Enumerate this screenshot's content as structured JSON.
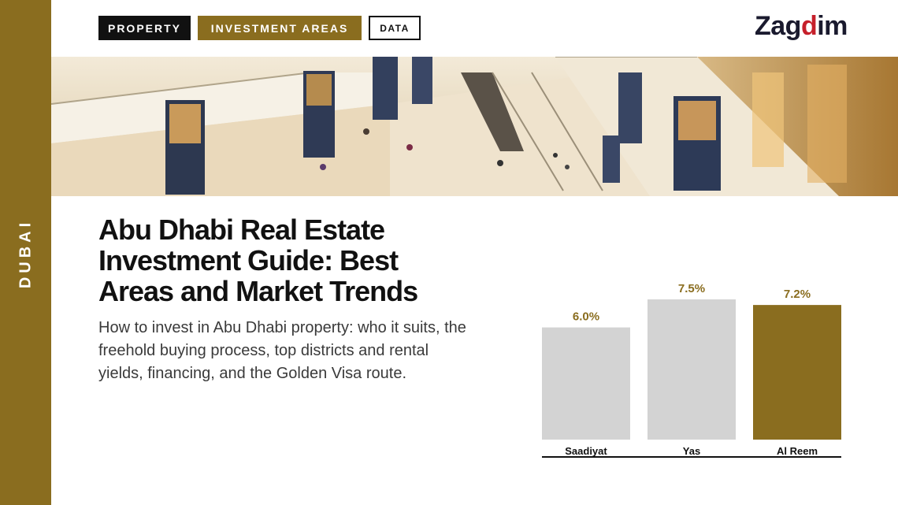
{
  "side": {
    "label": "DUBAI"
  },
  "tags": {
    "property": "PROPERTY",
    "investment_areas": "INVESTMENT AREAS",
    "data": "DATA"
  },
  "logo": {
    "part1": "Zag",
    "part2": "d",
    "part3": "im"
  },
  "banner": {
    "image": "shopping-mall-interior-photo"
  },
  "headline": "Abu Dhabi Real Estate Investment Guide: Best Areas and Market Trends",
  "subtitle": "How to invest in Abu Dhabi property: who it suits, the freehold buying process, top districts and rental yields, financing, and the Golden Visa route.",
  "colors": {
    "gold": "#8a6d1f",
    "grey_bar": "#d3d3d3",
    "dark": "#111111"
  },
  "chart_data": {
    "type": "bar",
    "categories": [
      "Saadiyat",
      "Yas",
      "Al Reem"
    ],
    "values": [
      6.0,
      7.5,
      7.2
    ],
    "value_labels": [
      "6.0%",
      "7.5%",
      "7.2%"
    ],
    "highlight": "Al Reem",
    "title": "",
    "xlabel": "",
    "ylabel": "",
    "ylim": [
      0,
      8
    ]
  }
}
